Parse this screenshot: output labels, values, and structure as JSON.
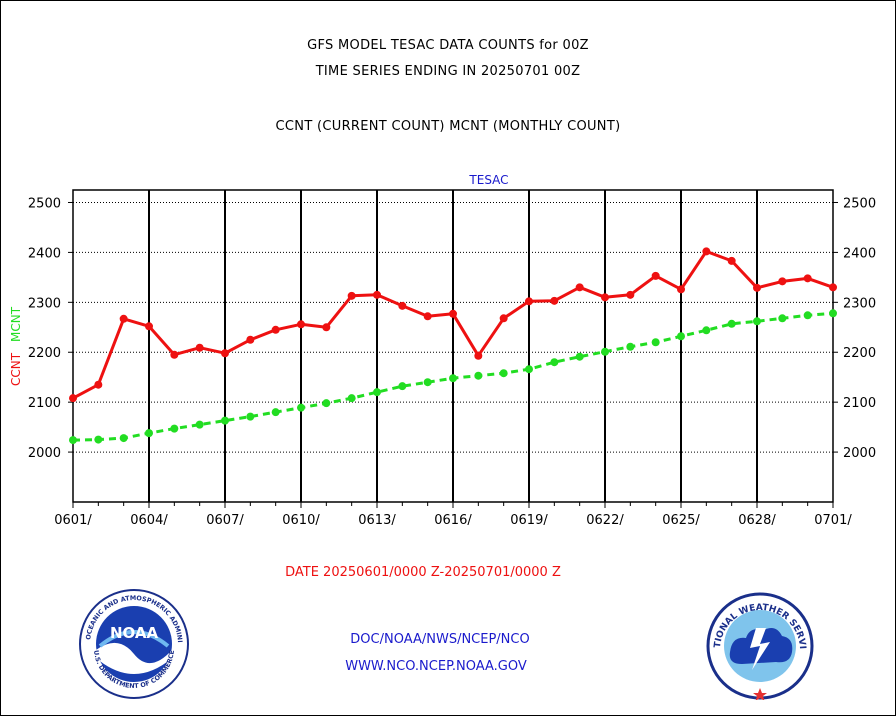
{
  "header": {
    "title_line1": "GFS MODEL TESAC DATA COUNTS for 00Z",
    "title_line2": "TIME SERIES ENDING IN 20250701 00Z",
    "subtitle": "CCNT (CURRENT COUNT) MCNT (MONTHLY COUNT)"
  },
  "footer": {
    "date_range": "DATE 20250601/0000 Z-20250701/0000 Z",
    "org_path": "DOC/NOAA/NWS/NCEP/NCO",
    "website": "WWW.NCO.NCEP.NOAA.GOV"
  },
  "logos": {
    "noaa_center": "NOAA",
    "noaa_ring": "NATIONAL OCEANIC AND ATMOSPHERIC ADMINISTRATION",
    "noaa_ring_bottom": "U.S. DEPARTMENT OF COMMERCE",
    "nws_ring": "NATIONAL WEATHER SERVICE"
  },
  "colors": {
    "ccnt": "#ee1111",
    "mcnt": "#22dd22",
    "panel_title": "#1a1acc",
    "footer_date": "#ee1111",
    "footer_links": "#1a1acc"
  },
  "chart_data": {
    "type": "line",
    "panel_title": "TESAC",
    "ylabel_ccnt": "CCNT",
    "ylabel_mcnt": "MCNT",
    "ylim": [
      1900,
      2525
    ],
    "yticks": [
      2000,
      2100,
      2200,
      2300,
      2400,
      2500
    ],
    "ytick_labels": [
      "2000",
      "2100",
      "2200",
      "2300",
      "2400",
      "2500"
    ],
    "xtick_labels": [
      "0601/",
      "0604/",
      "0607/",
      "0610/",
      "0613/",
      "0616/",
      "0619/",
      "0622/",
      "0625/",
      "0628/",
      "0701/"
    ],
    "grid": true,
    "x": [
      "0601",
      "0602",
      "0603",
      "0604",
      "0605",
      "0606",
      "0607",
      "0608",
      "0609",
      "0610",
      "0611",
      "0612",
      "0613",
      "0614",
      "0615",
      "0616",
      "0617",
      "0618",
      "0619",
      "0620",
      "0621",
      "0622",
      "0623",
      "0624",
      "0625",
      "0626",
      "0627",
      "0628",
      "0629",
      "0630",
      "0701"
    ],
    "series": [
      {
        "name": "CCNT",
        "style": "solid",
        "values": [
          2108,
          2135,
          2267,
          2252,
          2195,
          2209,
          2198,
          2225,
          2245,
          2256,
          2250,
          2313,
          2315,
          2293,
          2272,
          2277,
          2193,
          2268,
          2302,
          2303,
          2330,
          2310,
          2315,
          2353,
          2326,
          2402,
          2383,
          2329,
          2342,
          2348,
          2330
        ]
      },
      {
        "name": "MCNT",
        "style": "dashed",
        "values": [
          2024,
          2025,
          2028,
          2038,
          2047,
          2055,
          2063,
          2071,
          2080,
          2089,
          2098,
          2108,
          2120,
          2132,
          2140,
          2148,
          2153,
          2158,
          2166,
          2180,
          2191,
          2201,
          2211,
          2220,
          2232,
          2244,
          2257,
          2262,
          2268,
          2274,
          2278
        ]
      }
    ]
  }
}
